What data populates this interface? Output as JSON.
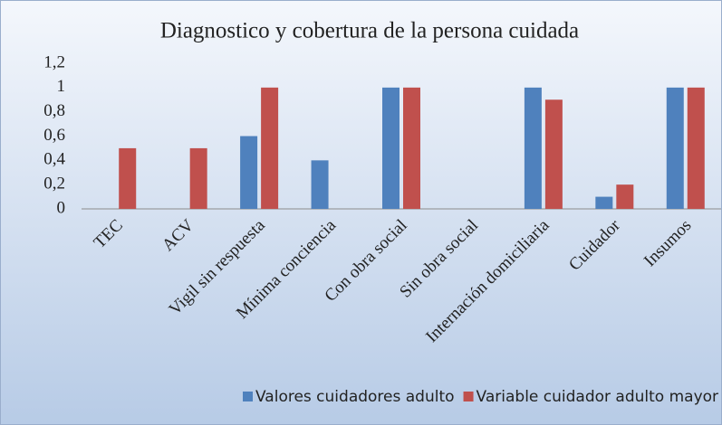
{
  "chart_data": {
    "type": "bar",
    "title": "Diagnostico y cobertura de la persona cuidada",
    "categories": [
      "TEC",
      "ACV",
      "Vigil sin respuesta",
      "Mínima conciencia",
      "Con obra social",
      "Sin obra social",
      "Internación domiciliaria",
      "Cuidador",
      "Insumos"
    ],
    "series": [
      {
        "name": "Valores cuidadores adulto",
        "color": "#4f81bd",
        "values": [
          0,
          0,
          0.6,
          0.4,
          1,
          0,
          1,
          0.1,
          1
        ]
      },
      {
        "name": "Variable cuidador adulto mayor",
        "color": "#c0504d",
        "values": [
          0.5,
          0.5,
          1,
          0,
          1,
          0,
          0.9,
          0.2,
          1
        ]
      }
    ],
    "ylim": [
      0,
      1.2
    ],
    "yticks": [
      0,
      {
        "value": 0.2,
        "label": "0,2"
      },
      {
        "value": 0.4,
        "label": "0,4"
      },
      {
        "value": 0.6,
        "label": "0,6"
      },
      {
        "value": 0.8,
        "label": "0,8"
      },
      1,
      {
        "value": 1.2,
        "label": "1,2"
      }
    ],
    "grid": false,
    "legend": "bottom"
  }
}
